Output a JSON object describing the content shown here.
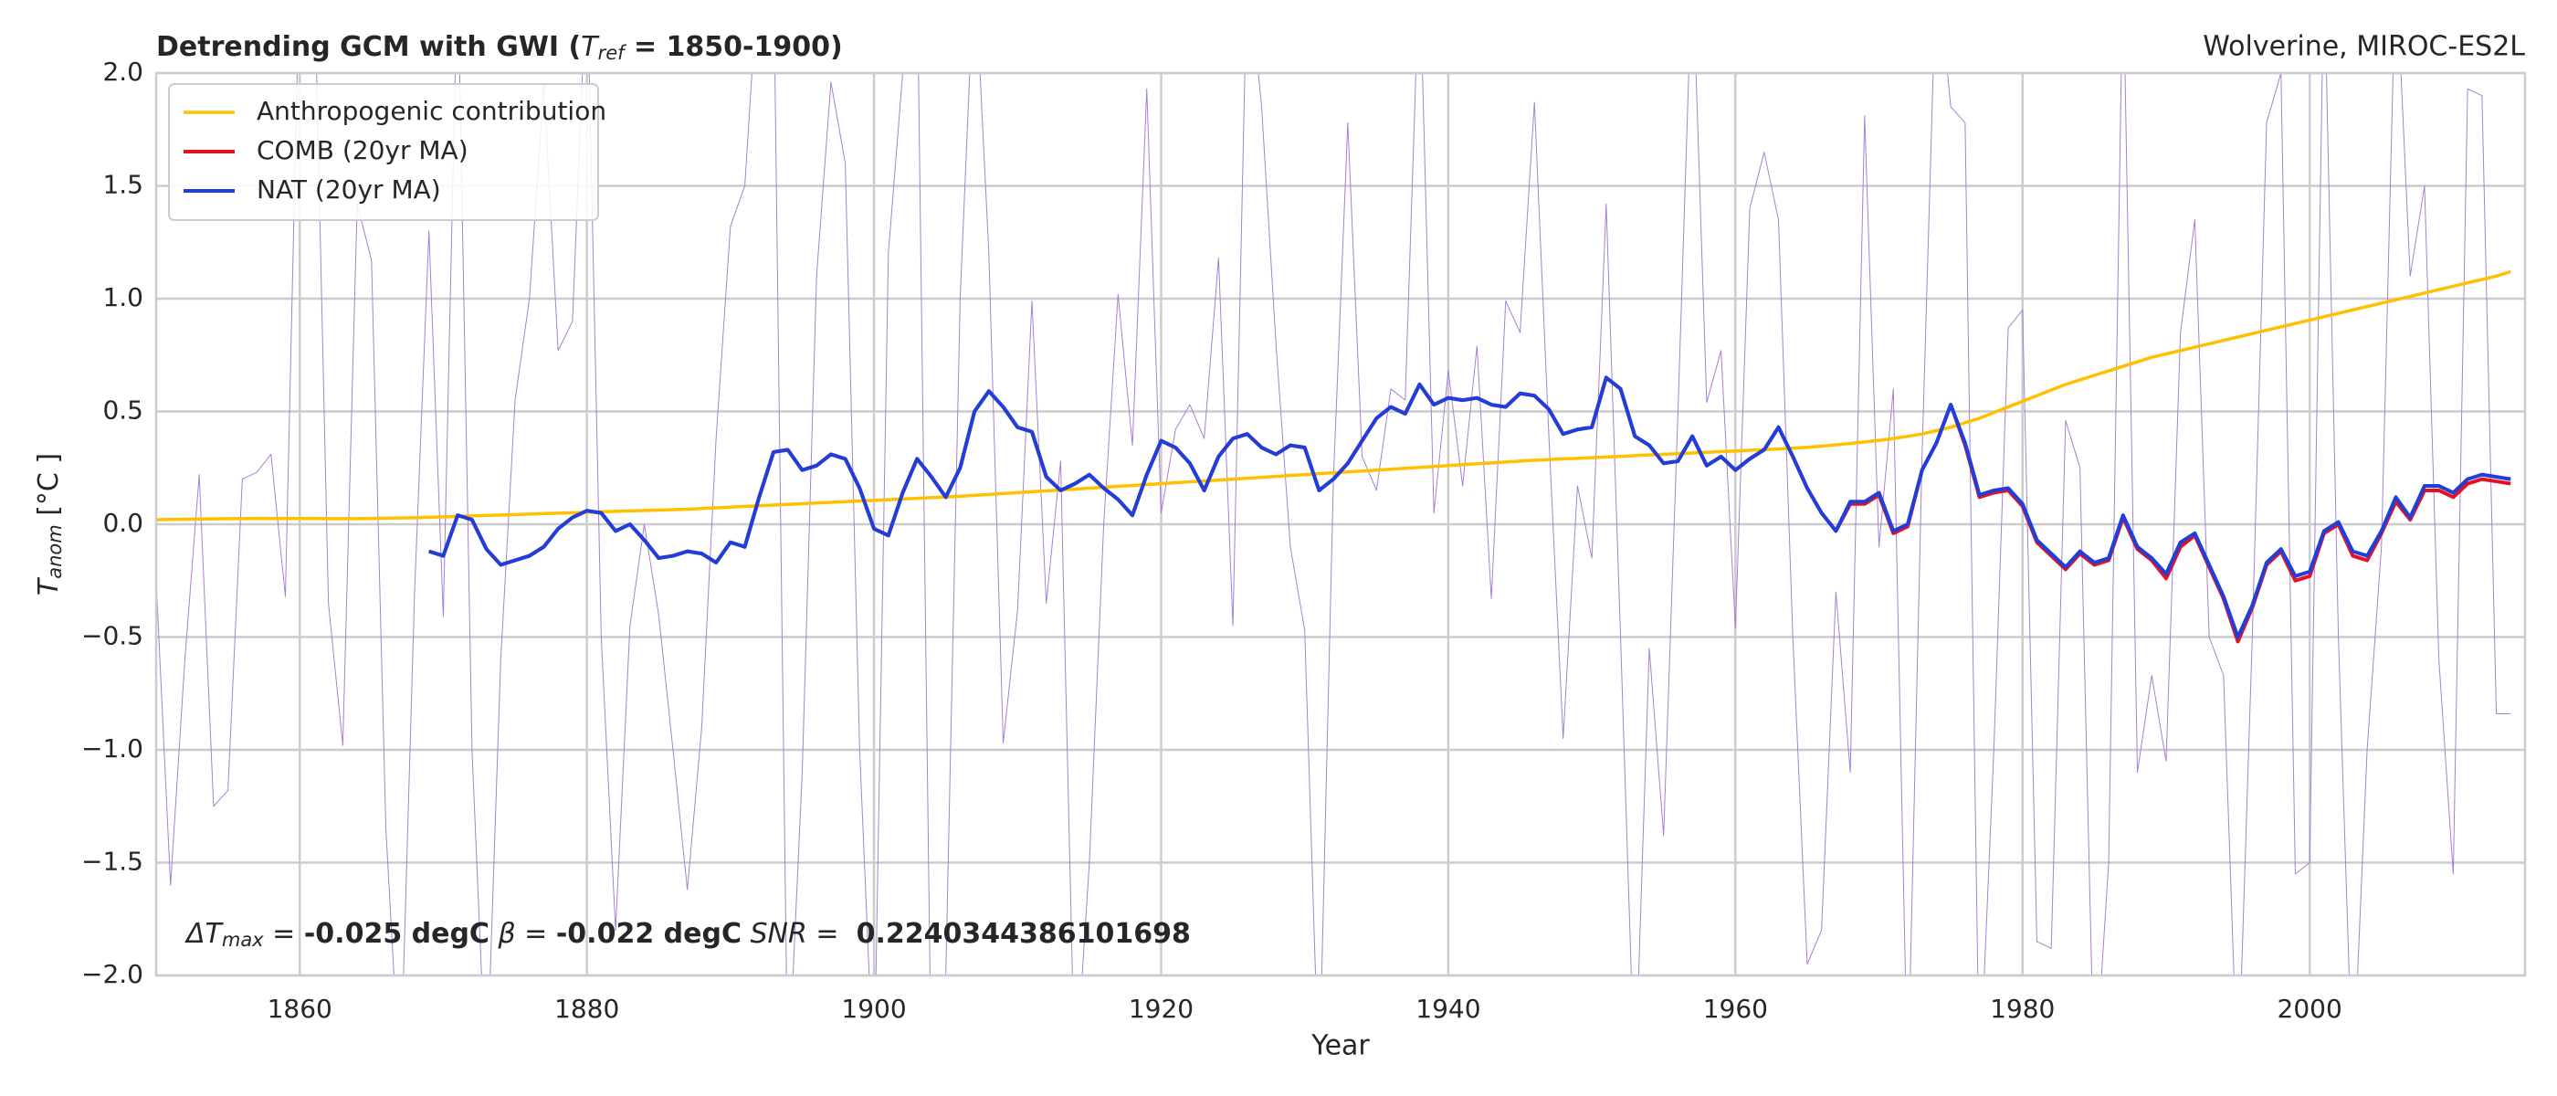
{
  "chart_data": {
    "type": "line",
    "title": {
      "start": "Detrending GCM with GWI (",
      "symbol": "T",
      "sub": "ref",
      "end": " = 1850-1900)"
    },
    "subtitle": "Wolverine, MIROC-ES2L",
    "xlabel": "Year",
    "ylabel": {
      "symbol": "T",
      "sub": "anom",
      "end": " [°C ]"
    },
    "annotation": {
      "delta": "ΔT",
      "delta_sub": "max",
      "eq1": " = ",
      "v1": "-0.025 degC",
      "beta": " β",
      "eq2": " = ",
      "v2": "-0.022 degC",
      "snr": " SNR",
      "eq3": " =  ",
      "v3": "0.2240344386101698"
    },
    "grid": true,
    "legend": "upper left",
    "xlim": [
      1850,
      2015
    ],
    "ylim": [
      -2,
      2
    ],
    "xticks": [
      1860,
      1880,
      1900,
      1920,
      1940,
      1960,
      1980,
      2000
    ],
    "yticks": [
      {
        "value": -2,
        "label": "−2.0"
      },
      {
        "value": -1.5,
        "label": "−1.5"
      },
      {
        "value": -1,
        "label": "−1.0"
      },
      {
        "value": -0.5,
        "label": "−0.5"
      },
      {
        "value": 0,
        "label": "0.0"
      },
      0.5,
      {
        "value": 1,
        "label": "1.0"
      },
      1.5,
      {
        "value": 2,
        "label": "2.0"
      }
    ],
    "x": [
      1850,
      1851,
      1852,
      1853,
      1854,
      1855,
      1856,
      1857,
      1858,
      1859,
      1860,
      1861,
      1862,
      1863,
      1864,
      1865,
      1866,
      1867,
      1868,
      1869,
      1870,
      1871,
      1872,
      1873,
      1874,
      1875,
      1876,
      1877,
      1878,
      1879,
      1880,
      1881,
      1882,
      1883,
      1884,
      1885,
      1886,
      1887,
      1888,
      1889,
      1890,
      1891,
      1892,
      1893,
      1894,
      1895,
      1896,
      1897,
      1898,
      1899,
      1900,
      1901,
      1902,
      1903,
      1904,
      1905,
      1906,
      1907,
      1908,
      1909,
      1910,
      1911,
      1912,
      1913,
      1914,
      1915,
      1916,
      1917,
      1918,
      1919,
      1920,
      1921,
      1922,
      1923,
      1924,
      1925,
      1926,
      1927,
      1928,
      1929,
      1930,
      1931,
      1932,
      1933,
      1934,
      1935,
      1936,
      1937,
      1938,
      1939,
      1940,
      1941,
      1942,
      1943,
      1944,
      1945,
      1946,
      1947,
      1948,
      1949,
      1950,
      1951,
      1952,
      1953,
      1954,
      1955,
      1956,
      1957,
      1958,
      1959,
      1960,
      1961,
      1962,
      1963,
      1964,
      1965,
      1966,
      1967,
      1968,
      1969,
      1970,
      1971,
      1972,
      1973,
      1974,
      1975,
      1976,
      1977,
      1978,
      1979,
      1980,
      1981,
      1982,
      1983,
      1984,
      1985,
      1986,
      1987,
      1988,
      1989,
      1990,
      1991,
      1992,
      1993,
      1994,
      1995,
      1996,
      1997,
      1998,
      1999,
      2000,
      2001,
      2002,
      2003,
      2004,
      2005,
      2006,
      2007,
      2008,
      2009,
      2010,
      2011,
      2012,
      2013,
      2014
    ],
    "series": [
      {
        "color": "#a77fd6",
        "width": 1,
        "values": [
          -0.25,
          -1.6,
          -0.6,
          0.22,
          -1.25,
          -1.18,
          0.2,
          0.23,
          0.31,
          -0.32,
          2.5,
          2.5,
          -0.35,
          -0.98,
          1.42,
          1.17,
          -1.35,
          -2.5,
          -0.3,
          1.3,
          -0.41,
          2.5,
          -1.0,
          -2.5,
          -0.6,
          0.55,
          1.0,
          1.95,
          0.77,
          0.9,
          2.5,
          -0.5,
          -1.8,
          -0.45,
          0.0,
          -0.4,
          -1.0,
          -1.62,
          -0.9,
          0.38,
          1.32,
          1.5,
          2.5,
          2.5,
          -2.5,
          -1.1,
          1.1,
          1.96,
          1.6,
          -1.0,
          -2.5,
          1.2,
          2.0,
          2.5,
          -2.5,
          -2.0,
          1.0,
          2.5,
          1.2,
          -0.97,
          -0.38,
          0.99,
          -0.35,
          0.28,
          -2.5,
          -1.5,
          0.0,
          1.02,
          0.35,
          1.93,
          0.05,
          0.42,
          0.53,
          0.38,
          1.18,
          -0.45,
          2.5,
          1.85,
          0.8,
          -0.1,
          -0.47,
          -2.5,
          0.2,
          1.78,
          0.3,
          0.15,
          0.6,
          0.55,
          2.5,
          0.05,
          0.68,
          0.17,
          0.79,
          -0.33,
          0.99,
          0.85,
          1.87,
          0.4,
          -0.95,
          0.17,
          -0.15,
          1.42,
          -0.5,
          -2.5,
          -0.55,
          -1.38,
          0.5,
          2.5,
          0.54,
          0.77,
          -0.46,
          1.4,
          1.65,
          1.35,
          -0.5,
          -1.95,
          -1.8,
          -0.3,
          -1.1,
          1.81,
          -0.1,
          0.6,
          -2.5,
          0.3,
          2.5,
          1.85,
          1.78,
          -2.5,
          -1.0,
          0.87,
          0.95,
          -1.85,
          -1.88,
          0.46,
          0.25,
          -2.5,
          -1.5,
          2.5,
          -1.1,
          -0.67,
          -1.05,
          0.85,
          1.35,
          -0.5,
          -0.67,
          -2.5,
          -0.5,
          1.78,
          2.0,
          -1.55,
          -1.5,
          2.5,
          -0.5,
          -2.5,
          -1.0,
          -0.1,
          2.5,
          1.1,
          1.5,
          -0.6,
          -1.55,
          1.93,
          1.9,
          -0.84,
          -0.84
        ]
      },
      {
        "name": "Anthropogenic contribution",
        "color": "#ffc000",
        "width": 3.5,
        "values": [
          0.02,
          0.021,
          0.022,
          0.023,
          0.024,
          0.025,
          0.025,
          0.026,
          0.026,
          0.026,
          0.026,
          0.026,
          0.025,
          0.025,
          0.025,
          0.026,
          0.027,
          0.028,
          0.029,
          0.031,
          0.033,
          0.035,
          0.037,
          0.039,
          0.041,
          0.043,
          0.045,
          0.047,
          0.049,
          0.051,
          0.053,
          0.055,
          0.057,
          0.059,
          0.061,
          0.063,
          0.065,
          0.067,
          0.07,
          0.073,
          0.076,
          0.079,
          0.082,
          0.085,
          0.088,
          0.091,
          0.094,
          0.097,
          0.1,
          0.103,
          0.106,
          0.109,
          0.112,
          0.115,
          0.118,
          0.121,
          0.124,
          0.128,
          0.132,
          0.136,
          0.14,
          0.144,
          0.148,
          0.152,
          0.156,
          0.16,
          0.164,
          0.168,
          0.172,
          0.176,
          0.18,
          0.184,
          0.188,
          0.192,
          0.196,
          0.2,
          0.204,
          0.208,
          0.212,
          0.216,
          0.22,
          0.224,
          0.228,
          0.232,
          0.236,
          0.24,
          0.244,
          0.248,
          0.252,
          0.256,
          0.26,
          0.264,
          0.268,
          0.272,
          0.276,
          0.28,
          0.284,
          0.287,
          0.29,
          0.292,
          0.295,
          0.298,
          0.301,
          0.304,
          0.307,
          0.31,
          0.313,
          0.316,
          0.319,
          0.322,
          0.325,
          0.328,
          0.331,
          0.334,
          0.337,
          0.341,
          0.346,
          0.352,
          0.358,
          0.365,
          0.372,
          0.38,
          0.39,
          0.4,
          0.415,
          0.43,
          0.45,
          0.47,
          0.495,
          0.52,
          0.545,
          0.57,
          0.595,
          0.62,
          0.64,
          0.66,
          0.68,
          0.7,
          0.72,
          0.74,
          0.755,
          0.77,
          0.785,
          0.8,
          0.815,
          0.83,
          0.845,
          0.86,
          0.875,
          0.89,
          0.905,
          0.92,
          0.935,
          0.95,
          0.965,
          0.98,
          0.995,
          1.01,
          1.025,
          1.04,
          1.055,
          1.07,
          1.085,
          1.1,
          1.12
        ]
      },
      {
        "name": "COMB (20yr MA)",
        "color": "#e8101f",
        "width": 4,
        "values": [
          null,
          null,
          null,
          null,
          null,
          null,
          null,
          null,
          null,
          null,
          null,
          null,
          null,
          null,
          null,
          null,
          null,
          null,
          null,
          -0.12,
          -0.14,
          0.04,
          0.02,
          -0.11,
          -0.18,
          -0.16,
          -0.14,
          -0.1,
          -0.02,
          0.03,
          0.06,
          0.05,
          -0.03,
          0.0,
          -0.07,
          -0.15,
          -0.14,
          -0.12,
          -0.13,
          -0.17,
          -0.08,
          -0.1,
          0.12,
          0.32,
          0.33,
          0.24,
          0.26,
          0.31,
          0.29,
          0.16,
          -0.02,
          -0.05,
          0.14,
          0.29,
          0.21,
          0.12,
          0.25,
          0.5,
          0.59,
          0.52,
          0.43,
          0.41,
          0.21,
          0.15,
          0.18,
          0.22,
          0.16,
          0.11,
          0.04,
          0.22,
          0.37,
          0.34,
          0.27,
          0.15,
          0.3,
          0.38,
          0.4,
          0.34,
          0.31,
          0.35,
          0.34,
          0.15,
          0.2,
          0.27,
          0.37,
          0.47,
          0.52,
          0.49,
          0.62,
          0.53,
          0.56,
          0.55,
          0.56,
          0.53,
          0.52,
          0.58,
          0.57,
          0.51,
          0.4,
          0.42,
          0.43,
          0.65,
          0.6,
          0.39,
          0.35,
          0.27,
          0.28,
          0.39,
          0.26,
          0.3,
          0.24,
          0.29,
          0.33,
          0.43,
          0.3,
          0.16,
          0.05,
          -0.03,
          0.09,
          0.09,
          0.13,
          -0.04,
          -0.01,
          0.24,
          0.36,
          0.53,
          0.35,
          0.12,
          0.14,
          0.15,
          0.08,
          -0.08,
          -0.14,
          -0.2,
          -0.13,
          -0.18,
          -0.16,
          0.03,
          -0.11,
          -0.16,
          -0.24,
          -0.1,
          -0.05,
          -0.19,
          -0.33,
          -0.52,
          -0.37,
          -0.18,
          -0.12,
          -0.25,
          -0.23,
          -0.04,
          0.0,
          -0.14,
          -0.16,
          -0.04,
          0.1,
          0.02,
          0.15,
          0.15,
          0.12,
          0.18,
          0.2,
          0.19,
          0.18
        ]
      },
      {
        "name": "NAT (20yr MA)",
        "color": "#1f3fdb",
        "width": 4,
        "values": [
          null,
          null,
          null,
          null,
          null,
          null,
          null,
          null,
          null,
          null,
          null,
          null,
          null,
          null,
          null,
          null,
          null,
          null,
          null,
          -0.12,
          -0.14,
          0.04,
          0.02,
          -0.11,
          -0.18,
          -0.16,
          -0.14,
          -0.1,
          -0.02,
          0.03,
          0.06,
          0.05,
          -0.03,
          0.0,
          -0.07,
          -0.15,
          -0.14,
          -0.12,
          -0.13,
          -0.17,
          -0.08,
          -0.1,
          0.12,
          0.32,
          0.33,
          0.24,
          0.26,
          0.31,
          0.29,
          0.16,
          -0.02,
          -0.05,
          0.14,
          0.29,
          0.21,
          0.12,
          0.25,
          0.5,
          0.59,
          0.52,
          0.43,
          0.41,
          0.21,
          0.15,
          0.18,
          0.22,
          0.16,
          0.11,
          0.04,
          0.22,
          0.37,
          0.34,
          0.27,
          0.15,
          0.3,
          0.38,
          0.4,
          0.34,
          0.31,
          0.35,
          0.34,
          0.15,
          0.2,
          0.27,
          0.37,
          0.47,
          0.52,
          0.49,
          0.62,
          0.53,
          0.56,
          0.55,
          0.56,
          0.53,
          0.52,
          0.58,
          0.57,
          0.51,
          0.4,
          0.42,
          0.43,
          0.65,
          0.6,
          0.39,
          0.35,
          0.27,
          0.28,
          0.39,
          0.26,
          0.3,
          0.24,
          0.29,
          0.33,
          0.43,
          0.3,
          0.16,
          0.05,
          -0.03,
          0.1,
          0.1,
          0.14,
          -0.03,
          0.0,
          0.24,
          0.36,
          0.53,
          0.36,
          0.13,
          0.15,
          0.16,
          0.09,
          -0.07,
          -0.13,
          -0.19,
          -0.12,
          -0.17,
          -0.15,
          0.04,
          -0.1,
          -0.15,
          -0.22,
          -0.08,
          -0.04,
          -0.18,
          -0.32,
          -0.5,
          -0.36,
          -0.17,
          -0.11,
          -0.23,
          -0.21,
          -0.03,
          0.01,
          -0.12,
          -0.14,
          -0.03,
          0.12,
          0.03,
          0.17,
          0.17,
          0.14,
          0.2,
          0.22,
          0.21,
          0.2
        ]
      }
    ]
  }
}
